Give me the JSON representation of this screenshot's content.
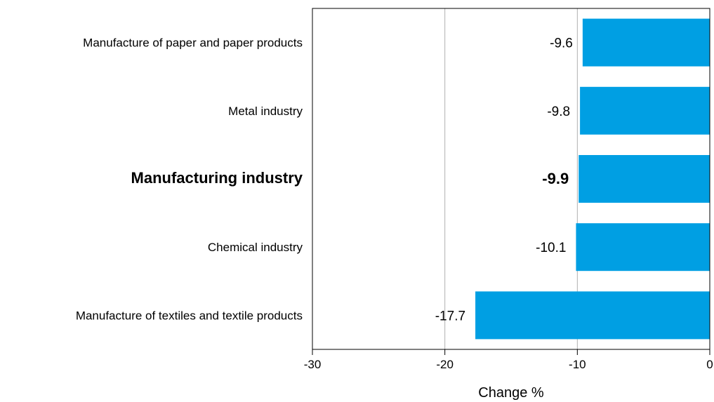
{
  "chart_data": {
    "type": "bar",
    "orientation": "horizontal",
    "categories": [
      "Manufacture of paper and paper products",
      "Metal industry",
      "Manufacturing industry",
      "Chemical industry",
      "Manufacture of textiles and textile products"
    ],
    "values": [
      -9.6,
      -9.8,
      -9.9,
      -10.1,
      -17.7
    ],
    "value_labels": [
      "-9.6",
      "-9.8",
      "-9.9",
      "-10.1",
      "-17.7"
    ],
    "highlighted": [
      "Manufacturing industry"
    ],
    "xlabel": "Change %",
    "ylabel": "",
    "xlim": [
      -30,
      0
    ],
    "xticks": [
      -30,
      -20,
      -10,
      0
    ],
    "xtick_labels": [
      "-30",
      "-20",
      "-10",
      "0"
    ],
    "grid": "vertical",
    "bar_color": "#009fe3",
    "grid_color": "#b0b0b0"
  }
}
